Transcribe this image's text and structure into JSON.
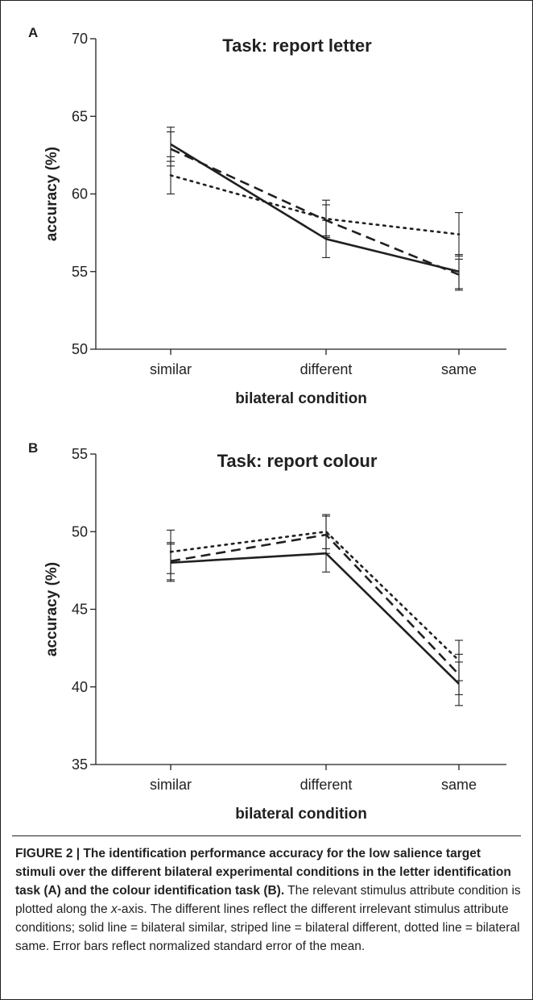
{
  "chart_data": [
    {
      "panel": "A",
      "type": "line",
      "title": "Task: report letter",
      "xlabel": "bilateral condition",
      "ylabel": "accuracy (%)",
      "categories": [
        "similar",
        "different",
        "same"
      ],
      "ylim": [
        50,
        70
      ],
      "yticks": [
        50,
        55,
        60,
        65,
        70
      ],
      "grid": false,
      "series": [
        {
          "style": "solid",
          "values": [
            63.2,
            57.1,
            55.0
          ],
          "errors": [
            1.1,
            1.2,
            1.1
          ]
        },
        {
          "style": "dashed",
          "values": [
            62.9,
            58.3,
            54.8
          ],
          "errors": [
            1.1,
            1.0,
            1.0
          ]
        },
        {
          "style": "dotted",
          "values": [
            61.2,
            58.4,
            57.4
          ],
          "errors": [
            1.2,
            1.2,
            1.4
          ]
        }
      ]
    },
    {
      "panel": "B",
      "type": "line",
      "title": "Task: report colour",
      "xlabel": "bilateral condition",
      "ylabel": "accuracy (%)",
      "categories": [
        "similar",
        "different",
        "same"
      ],
      "ylim": [
        35,
        55
      ],
      "yticks": [
        35,
        40,
        45,
        50,
        55
      ],
      "grid": false,
      "series": [
        {
          "style": "solid",
          "values": [
            48.0,
            48.6,
            40.2
          ],
          "errors": [
            1.2,
            1.2,
            1.4
          ]
        },
        {
          "style": "dashed",
          "values": [
            48.1,
            49.8,
            40.8
          ],
          "errors": [
            1.2,
            1.2,
            1.3
          ]
        },
        {
          "style": "dotted",
          "values": [
            48.7,
            50.0,
            41.7
          ],
          "errors": [
            1.4,
            1.1,
            1.3
          ]
        }
      ]
    }
  ],
  "caption": {
    "bold_text": "FIGURE 2 | The identification performance accuracy for the low salience target stimuli over the different bilateral experimental conditions in the letter identification task (A) and the colour identification task (B).",
    "text_before_italic": " The relevant stimulus attribute condition is plotted along the ",
    "italic_text": "x",
    "text_after_italic": "-axis. The different lines reflect the different irrelevant stimulus attribute conditions; solid line = bilateral similar, striped line = bilateral different, dotted line = bilateral same. Error bars reflect normalized standard error of the mean."
  },
  "colors": {
    "ink": "#231f20",
    "background": "#ffffff"
  }
}
